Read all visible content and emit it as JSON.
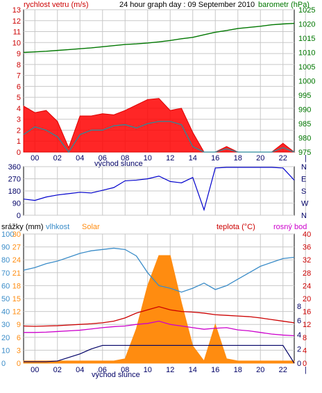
{
  "page": {
    "title": "24 hour graph day : 09 September 2010"
  },
  "colors": {
    "wind": "#dd0000",
    "gust_fill": "#ff0000",
    "baro": "#007700",
    "wind_avg": "#2a8a9a",
    "direction": "#0000cc",
    "humidity": "#3a8cc8",
    "solar": "#ff8c10",
    "temperature": "#cc0000",
    "dewpoint": "#cc00cc",
    "rain": "#000066",
    "grid": "#c8c8c8"
  },
  "chart_data": [
    {
      "type": "line",
      "name": "wind-pressure",
      "series_labels": {
        "left": "rychlost vetru (m/s)",
        "right": "barometr (hPa)"
      },
      "ylim_left": [
        0,
        13
      ],
      "ylim_right": [
        975,
        1025
      ],
      "yticks_left": [
        "0",
        "1",
        "2",
        "3",
        "4",
        "5",
        "6",
        "7",
        "8",
        "9",
        "10",
        "11",
        "12",
        "13"
      ],
      "yticks_right": [
        "975",
        "980",
        "985",
        "990",
        "995",
        "1000",
        "1005",
        "1010",
        "1015",
        "1020",
        "1025"
      ],
      "x_ticks": [
        "00",
        "02",
        "04",
        "06",
        "08",
        "10",
        "12",
        "14",
        "16",
        "18",
        "20",
        "22",
        "|"
      ],
      "sunrise_label": "východ slunce",
      "x": [
        0,
        1,
        2,
        3,
        4,
        5,
        6,
        7,
        8,
        9,
        10,
        11,
        12,
        13,
        14,
        15,
        16,
        17,
        18,
        19,
        20,
        21,
        22,
        23,
        24
      ],
      "series": [
        {
          "name": "gust",
          "values": [
            4.2,
            3.6,
            3.8,
            2.8,
            0.4,
            3.3,
            3.3,
            3.5,
            3.4,
            3.8,
            4.3,
            4.8,
            4.9,
            3.8,
            4.0,
            1.8,
            0,
            0,
            0.5,
            0,
            0,
            0,
            0,
            0.8,
            0
          ]
        },
        {
          "name": "wind_avg",
          "values": [
            1.6,
            2.3,
            2.0,
            1.4,
            0,
            1.6,
            2.0,
            2.0,
            2.4,
            2.5,
            2.2,
            2.6,
            2.8,
            2.8,
            2.5,
            0.5,
            0,
            0,
            0.3,
            0,
            0,
            0,
            0,
            0.4,
            0
          ]
        },
        {
          "name": "pressure",
          "values": [
            1010.0,
            1010.2,
            1010.4,
            1010.7,
            1011.0,
            1011.3,
            1011.6,
            1012.0,
            1012.4,
            1012.8,
            1013.0,
            1013.3,
            1013.7,
            1014.2,
            1014.8,
            1015.3,
            1016.2,
            1017.1,
            1017.7,
            1018.4,
            1018.8,
            1019.2,
            1019.7,
            1020.0,
            1020.2
          ]
        }
      ]
    },
    {
      "type": "line",
      "name": "wind-direction",
      "ylim": [
        0,
        360
      ],
      "yticks_left": [
        "0",
        "90",
        "180",
        "270",
        "360"
      ],
      "yticks_right": [
        "N",
        "W",
        "S",
        "E",
        "N"
      ],
      "x": [
        0,
        1,
        2,
        3,
        4,
        5,
        6,
        7,
        8,
        9,
        10,
        11,
        12,
        13,
        14,
        15,
        16,
        17,
        18,
        19,
        20,
        21,
        22,
        23,
        24
      ],
      "series": [
        {
          "name": "direction",
          "values": [
            120,
            110,
            135,
            150,
            160,
            170,
            165,
            185,
            205,
            255,
            260,
            270,
            290,
            250,
            240,
            280,
            40,
            350,
            355,
            355,
            355,
            355,
            355,
            350,
            260
          ]
        }
      ]
    },
    {
      "type": "line",
      "name": "rain-humidity-solar-temperature",
      "series_labels": {
        "rain": "srážky (mm)",
        "humidity": "vlhkost",
        "solar": "Solar",
        "temperature": "teplota (°C)",
        "dewpoint": "rosný bod"
      },
      "ylim_humidity": [
        0,
        100
      ],
      "ylim_solar": [
        0,
        30
      ],
      "ylim_temperature": [
        0,
        40
      ],
      "yticks_humidity": [
        "0",
        "10",
        "20",
        "30",
        "40",
        "50",
        "60",
        "70",
        "80",
        "90",
        "100"
      ],
      "yticks_solar": [
        "0",
        "3",
        "6",
        "9",
        "12",
        "15",
        "18",
        "21",
        "24",
        "27",
        "30"
      ],
      "yticks_rain": [
        "0",
        "2",
        "4",
        "6",
        "8"
      ],
      "yticks_temperature": [
        "0",
        "4",
        "8",
        "12",
        "16",
        "20",
        "24",
        "28",
        "32",
        "36",
        "40"
      ],
      "x_ticks": [
        "00",
        "02",
        "04",
        "06",
        "08",
        "10",
        "12",
        "14",
        "16",
        "18",
        "20",
        "22",
        "|"
      ],
      "sunrise_label": "východ slunce",
      "x": [
        0,
        1,
        2,
        3,
        4,
        5,
        6,
        7,
        8,
        9,
        10,
        11,
        12,
        13,
        14,
        15,
        16,
        17,
        18,
        19,
        20,
        21,
        22,
        23,
        24
      ],
      "series": [
        {
          "name": "humidity",
          "values": [
            72,
            74,
            77,
            79,
            82,
            85,
            87,
            88,
            89,
            88,
            83,
            70,
            60,
            58,
            55,
            58,
            62,
            57,
            60,
            65,
            70,
            75,
            78,
            81,
            82
          ]
        },
        {
          "name": "solar",
          "values": [
            0.5,
            0.5,
            0.5,
            0.5,
            0.5,
            0.5,
            0.5,
            0.5,
            0.5,
            1.0,
            8.0,
            18.0,
            25.0,
            25.0,
            14.0,
            4.0,
            0.5,
            9.0,
            1.0,
            0.5,
            0.5,
            0.5,
            0.5,
            0.5,
            0.5
          ]
        },
        {
          "name": "temperature",
          "values": [
            11.5,
            11.4,
            11.5,
            11.6,
            11.8,
            12.0,
            12.2,
            12.5,
            13.0,
            14.0,
            15.5,
            16.5,
            17.5,
            16.5,
            16.0,
            15.8,
            15.5,
            15.0,
            14.8,
            14.6,
            14.4,
            14.0,
            13.5,
            13.0,
            12.5
          ]
        },
        {
          "name": "dewpoint",
          "values": [
            9.5,
            9.5,
            9.6,
            9.8,
            10.0,
            10.2,
            10.6,
            11.0,
            11.3,
            11.5,
            12.0,
            12.3,
            13.0,
            12.0,
            11.5,
            11.0,
            10.5,
            10.8,
            11.0,
            10.3,
            10.0,
            9.5,
            9.0,
            8.7,
            8.5
          ]
        },
        {
          "name": "rain",
          "values": [
            0.2,
            0.2,
            0.2,
            0.3,
            0.8,
            1.3,
            2.0,
            2.5,
            2.5,
            2.5,
            2.5,
            2.5,
            2.5,
            2.5,
            2.5,
            2.5,
            2.5,
            2.5,
            2.5,
            2.5,
            2.5,
            2.5,
            2.5,
            2.5,
            0
          ]
        }
      ]
    }
  ]
}
